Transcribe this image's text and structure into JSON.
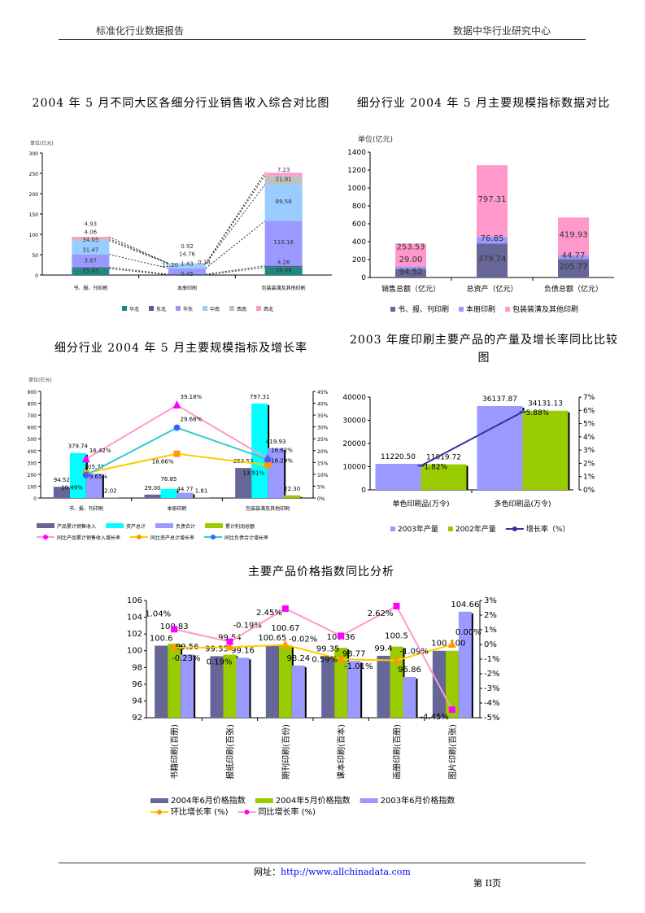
{
  "header": {
    "left": "标准化行业数据报告",
    "right": "数据中华行业研究中心"
  },
  "footer": {
    "url_label": "网址：",
    "url": "http://www.allchinadata.com",
    "page": "第 II页"
  },
  "colors": {
    "teal": "#1a8a80",
    "navy": "#666699",
    "periwinkle": "#9999ff",
    "sky": "#99ccff",
    "gray": "#c0c0c0",
    "pink": "#ff99cc",
    "cyan": "#00ffff",
    "green": "#99cc00",
    "orange": "#ffcc00",
    "magenta": "#ff00ff"
  },
  "chart_data": [
    {
      "id": "c1",
      "type": "bar",
      "stacked": true,
      "title": "2004 年 5 月不同大区各细分行业销售收入综合对比图",
      "unit": "单位(亿元)",
      "categories": [
        "书、报、刊印刷",
        "本册印刷",
        "包装装潢及其他印刷"
      ],
      "ylim": [
        0,
        300
      ],
      "yticks": [
        0,
        50,
        100,
        150,
        200,
        250,
        300
      ],
      "legend": "bottom",
      "series": [
        {
          "name": "华北",
          "color": "#1a8a80",
          "values": [
            15.65,
            0.45,
            18.48
          ]
        },
        {
          "name": "东北",
          "color": "#5a5a8a",
          "values": [
            3.67,
            1.43,
            4.26
          ]
        },
        {
          "name": "华东",
          "color": "#9999ff",
          "values": [
            31.47,
            14.76,
            110.16
          ]
        },
        {
          "name": "中南",
          "color": "#99ccff",
          "values": [
            34.05,
            11.2,
            89.58
          ]
        },
        {
          "name": "西南",
          "color": "#c0c0c0",
          "values": [
            4.06,
            0.92,
            21.81
          ]
        },
        {
          "name": "西北",
          "color": "#ff99cc",
          "values": [
            4.93,
            0.18,
            7.23
          ]
        }
      ]
    },
    {
      "id": "c2",
      "type": "bar",
      "stacked": true,
      "title": "细分行业 2004 年 5 月主要规模指标数据对比",
      "unit": "单位(亿元)",
      "categories": [
        "销售总额（亿元）",
        "总资产（亿元）",
        "负债总额（亿元）"
      ],
      "ylim": [
        0,
        1400
      ],
      "yticks": [
        0,
        200,
        400,
        600,
        800,
        1000,
        1200,
        1400
      ],
      "legend": "bottom",
      "series": [
        {
          "name": "书、报、刊印刷",
          "color": "#666699",
          "values": [
            94.52,
            379.74,
            205.77
          ]
        },
        {
          "name": "本册印刷",
          "color": "#9999ff",
          "values": [
            29.0,
            76.85,
            44.77
          ]
        },
        {
          "name": "包装装潢及其他印刷",
          "color": "#ff99cc",
          "values": [
            253.53,
            797.31,
            419.93
          ]
        }
      ]
    },
    {
      "id": "c3",
      "type": "bar",
      "title": "细分行业 2004 年 5 月主要规模指标及增长率",
      "unit": "单位(亿元)",
      "categories": [
        "书、报、刊印刷",
        "本册印刷",
        "包装装潢及其他印刷"
      ],
      "ylim": [
        0,
        900
      ],
      "yticks": [
        0,
        100,
        200,
        300,
        400,
        500,
        600,
        700,
        800,
        900
      ],
      "y2lim": [
        0,
        45
      ],
      "y2ticks": [
        0,
        5,
        10,
        15,
        20,
        25,
        30,
        35,
        40,
        45
      ],
      "legend": "bottom",
      "series": [
        {
          "name": "产品累计销售收入",
          "color": "#666699",
          "values": [
            94.52,
            29.0,
            253.53
          ]
        },
        {
          "name": "资产总计",
          "color": "#00ffff",
          "values": [
            379.74,
            76.85,
            797.31
          ]
        },
        {
          "name": "负债合计",
          "color": "#9999ff",
          "values": [
            205.77,
            44.77,
            419.93
          ]
        },
        {
          "name": "累计利润总额",
          "color": "#99cc00",
          "values": [
            2.02,
            1.81,
            22.3
          ]
        }
      ],
      "lines": [
        {
          "name": "同比产品累计销售收入增长率",
          "color": "#ff99cc",
          "marker": "triangle",
          "mcolor": "#ff00ff",
          "values": [
            16.42,
            39.18,
            16.62
          ]
        },
        {
          "name": "同比资产总计增长率",
          "color": "#ffcc00",
          "marker": "square",
          "mcolor": "#ff9900",
          "values": [
            10.49,
            18.66,
            13.91
          ]
        },
        {
          "name": "同比负债合计增长率",
          "color": "#33cccc",
          "marker": "circle",
          "mcolor": "#3366ff",
          "values": [
            9.65,
            29.68,
            16.29
          ]
        }
      ]
    },
    {
      "id": "c4",
      "type": "bar",
      "title": "2003 年度印刷主要产品的产量及增长率同比比较图",
      "categories": [
        "单色印刷品(万令)",
        "多色印刷品(万令)"
      ],
      "ylim": [
        0,
        40000
      ],
      "yticks": [
        0,
        10000,
        20000,
        30000,
        40000
      ],
      "y2lim": [
        0,
        7
      ],
      "y2ticks": [
        0,
        1,
        2,
        3,
        4,
        5,
        6,
        7
      ],
      "legend": "bottom",
      "series": [
        {
          "name": "2003年产量",
          "color": "#9999ff",
          "values": [
            11220.5,
            36137.87
          ]
        },
        {
          "name": "2002年产量",
          "color": "#99cc00",
          "values": [
            11019.72,
            34131.13
          ]
        }
      ],
      "lines": [
        {
          "name": "增长率（%）",
          "color": "#333399",
          "marker": "dash",
          "mcolor": "#333399",
          "values": [
            1.82,
            5.88
          ]
        }
      ]
    },
    {
      "id": "c5",
      "type": "bar",
      "title": "主要产品价格指数同比分析",
      "categories": [
        "书籍印刷(百册)",
        "报纸印刷(百张)",
        "期刊印刷(百份)",
        "课本印刷(百本)",
        "画册印刷(百册)",
        "图片印刷(百张)"
      ],
      "ylim": [
        92,
        106
      ],
      "yticks": [
        92,
        94,
        96,
        98,
        100,
        102,
        104,
        106
      ],
      "y2lim": [
        -5,
        3
      ],
      "y2ticks": [
        -5,
        -4,
        -3,
        -2,
        -1,
        0,
        1,
        2,
        3
      ],
      "legend": "bottom",
      "series": [
        {
          "name": "2004年6月价格指数",
          "color": "#666699",
          "values": [
            100.6,
            99.35,
            100.65,
            99.35,
            99.4,
            100
          ]
        },
        {
          "name": "2004年5月价格指数",
          "color": "#99cc00",
          "values": [
            100.83,
            99.54,
            100.67,
            100.36,
            100.5,
            100
          ]
        },
        {
          "name": "2003年6月价格指数",
          "color": "#9999ff",
          "values": [
            99.56,
            99.16,
            98.24,
            98.77,
            96.86,
            104.66
          ]
        }
      ],
      "lines": [
        {
          "name": "环比增长率 (%)",
          "color": "#ffcc00",
          "marker": "triangle",
          "mcolor": "#ff9900",
          "values": [
            -0.23,
            -0.19,
            -0.02,
            -1.01,
            -1.09,
            0.0
          ]
        },
        {
          "name": "同比增长率 (%)",
          "color": "#ff99cc",
          "marker": "square",
          "mcolor": "#ff00ff",
          "values": [
            1.04,
            0.19,
            2.45,
            0.59,
            2.62,
            -4.45
          ]
        }
      ]
    }
  ]
}
